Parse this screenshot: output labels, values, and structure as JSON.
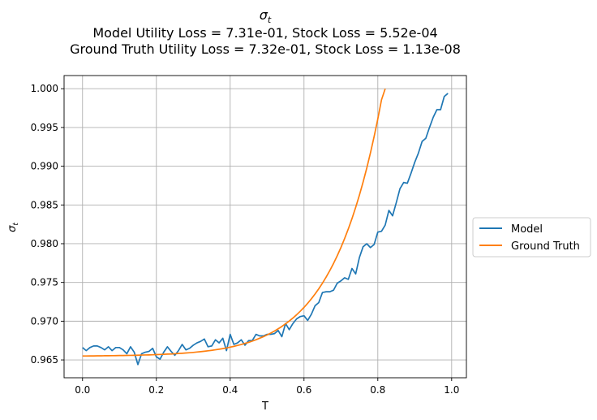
{
  "chart_data": {
    "type": "line",
    "title_symbol": "σ",
    "title_subscript": "t",
    "title_lines": [
      "Model Utility Loss = 7.31e-01, Stock Loss = 5.52e-04",
      "Ground Truth Utility Loss = 7.32e-01, Stock Loss = 1.13e-08"
    ],
    "xlabel": "T",
    "ylabel_symbol": "σ",
    "ylabel_subscript": "t",
    "xlim": [
      -0.05,
      1.04
    ],
    "ylim": [
      0.9627,
      1.0017
    ],
    "xticks": [
      0.0,
      0.2,
      0.4,
      0.6,
      0.8,
      1.0
    ],
    "xtick_labels": [
      "0.0",
      "0.2",
      "0.4",
      "0.6",
      "0.8",
      "1.0"
    ],
    "yticks": [
      0.965,
      0.97,
      0.975,
      0.98,
      0.985,
      0.99,
      0.995,
      1.0
    ],
    "ytick_labels": [
      "0.965",
      "0.970",
      "0.975",
      "0.980",
      "0.985",
      "0.990",
      "0.995",
      "1.000"
    ],
    "grid": true,
    "legend_position": "right-outside-center",
    "series": [
      {
        "name": "Model",
        "color": "#1f77b4",
        "x_start": 0.0,
        "x_step": 0.01,
        "values": [
          0.9666,
          0.9662,
          0.9666,
          0.9668,
          0.9668,
          0.9666,
          0.9663,
          0.9667,
          0.9662,
          0.9666,
          0.9666,
          0.9663,
          0.9658,
          0.9667,
          0.966,
          0.9644,
          0.9658,
          0.966,
          0.9661,
          0.9665,
          0.9654,
          0.9651,
          0.966,
          0.9667,
          0.9661,
          0.9656,
          0.9662,
          0.967,
          0.9663,
          0.9665,
          0.9669,
          0.9672,
          0.9674,
          0.9677,
          0.9667,
          0.9668,
          0.9676,
          0.9672,
          0.9678,
          0.9662,
          0.9683,
          0.967,
          0.9672,
          0.9676,
          0.9669,
          0.9675,
          0.9675,
          0.9683,
          0.9681,
          0.9681,
          0.9683,
          0.9683,
          0.9684,
          0.9688,
          0.968,
          0.9697,
          0.9689,
          0.9697,
          0.9703,
          0.9706,
          0.9707,
          0.9701,
          0.9709,
          0.972,
          0.9724,
          0.9737,
          0.9738,
          0.9738,
          0.974,
          0.9749,
          0.9752,
          0.9756,
          0.9754,
          0.9768,
          0.9761,
          0.9782,
          0.9796,
          0.98,
          0.9795,
          0.9799,
          0.9815,
          0.9816,
          0.9824,
          0.9843,
          0.9836,
          0.9853,
          0.9871,
          0.9879,
          0.9878,
          0.9891,
          0.9905,
          0.9917,
          0.9932,
          0.9936,
          0.995,
          0.9963,
          0.9973,
          0.9973,
          0.999,
          0.9994
        ]
      },
      {
        "name": "Ground Truth",
        "color": "#ff7f0e",
        "x_start": 0.0,
        "x_step": 0.01,
        "values": [
          0.96551,
          0.96551,
          0.96552,
          0.96552,
          0.96553,
          0.96553,
          0.96554,
          0.96554,
          0.96555,
          0.96556,
          0.96557,
          0.96557,
          0.96558,
          0.96559,
          0.9656,
          0.96561,
          0.96563,
          0.96564,
          0.96565,
          0.96567,
          0.96569,
          0.96571,
          0.96573,
          0.96575,
          0.96577,
          0.9658,
          0.96583,
          0.96586,
          0.9659,
          0.96593,
          0.96597,
          0.96602,
          0.96607,
          0.96612,
          0.96618,
          0.96624,
          0.96631,
          0.96638,
          0.96646,
          0.96655,
          0.96665,
          0.96675,
          0.96687,
          0.96699,
          0.96713,
          0.96727,
          0.96743,
          0.96761,
          0.9678,
          0.968,
          0.96823,
          0.96847,
          0.96873,
          0.96902,
          0.96932,
          0.96966,
          0.97002,
          0.97041,
          0.97083,
          0.97129,
          0.97178,
          0.97231,
          0.97289,
          0.97351,
          0.97418,
          0.97491,
          0.97569,
          0.97654,
          0.97745,
          0.97844,
          0.9795,
          0.98066,
          0.9819,
          0.98324,
          0.98469,
          0.98625,
          0.98794,
          0.98975,
          0.99172,
          0.99383,
          0.99611,
          0.99857,
          1.0
        ]
      }
    ]
  }
}
